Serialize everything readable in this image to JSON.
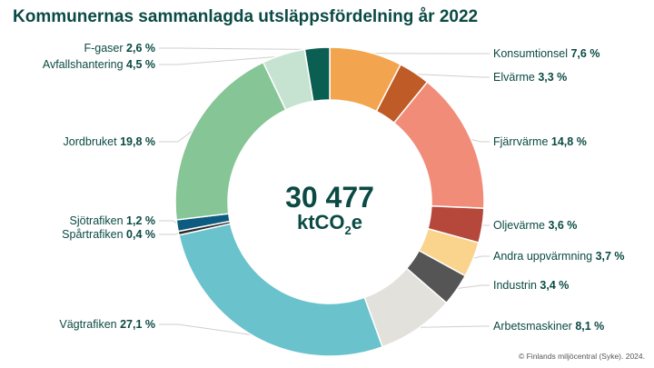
{
  "source": "© Finlands miljöcentral (Syke). 2024.",
  "chart_data": {
    "type": "pie",
    "title": "Kommunernas sammanlagda utsläppsfördelning år 2022",
    "center": {
      "value": "30 477",
      "unit_main": "ktCO",
      "unit_sub": "2",
      "unit_tail": "e"
    },
    "categories": [
      "Konsumtionsel",
      "Elvärme",
      "Fjärrvärme",
      "Oljevärme",
      "Andra uppvärmning",
      "Industrin",
      "Arbetsmaskiner",
      "Vägtrafiken",
      "Spårtrafiken",
      "Sjötrafiken",
      "Jordbruket",
      "Avfallshantering",
      "F-gaser"
    ],
    "values": [
      7.6,
      3.3,
      14.8,
      3.6,
      3.7,
      3.4,
      8.1,
      27.1,
      0.4,
      1.2,
      19.8,
      4.5,
      2.6
    ],
    "value_labels": [
      "7,6 %",
      "3,3 %",
      "14,8 %",
      "3,6 %",
      "3,7 %",
      "3,4 %",
      "8,1 %",
      "27,1 %",
      "0,4 %",
      "1,2 %",
      "19,8 %",
      "4,5 %",
      "2,6 %"
    ],
    "colors": [
      "#f2a54e",
      "#bf5b27",
      "#f08c78",
      "#b5473b",
      "#fad48d",
      "#555555",
      "#e2e1dc",
      "#69c2cc",
      "#2b2b2b",
      "#0d5b80",
      "#86c595",
      "#c6e3d2",
      "#0b5e52"
    ],
    "sides": [
      "right",
      "right",
      "right",
      "right",
      "right",
      "right",
      "right",
      "left",
      "left",
      "left",
      "left",
      "left",
      "left"
    ]
  }
}
